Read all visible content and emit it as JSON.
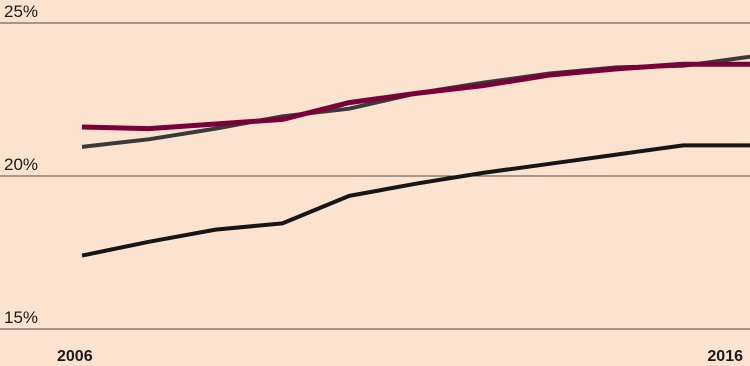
{
  "chart_data": {
    "type": "line",
    "title": "",
    "xlabel": "",
    "ylabel": "",
    "x": [
      2006,
      2007,
      2008,
      2009,
      2010,
      2011,
      2012,
      2013,
      2014,
      2015,
      2016
    ],
    "x_tick_labels": [
      "2006",
      "2016"
    ],
    "y_ticks": [
      15,
      20,
      25
    ],
    "y_tick_labels": [
      "15%",
      "20%",
      "25%"
    ],
    "ylim": [
      15,
      25
    ],
    "grid": true,
    "legend": "none",
    "series": [
      {
        "color": "#3a3a3a",
        "values": [
          20.95,
          21.2,
          21.55,
          21.95,
          22.2,
          22.7,
          23.05,
          23.35,
          23.55,
          23.6,
          23.9
        ]
      },
      {
        "color": "#7a0039",
        "values": [
          21.6,
          21.55,
          21.7,
          21.85,
          22.4,
          22.7,
          22.95,
          23.3,
          23.5,
          23.65,
          23.65
        ]
      },
      {
        "color": "#161616",
        "values": [
          17.4,
          17.85,
          18.25,
          18.45,
          19.35,
          19.75,
          20.1,
          20.4,
          20.7,
          21.0,
          21.0
        ]
      }
    ]
  }
}
